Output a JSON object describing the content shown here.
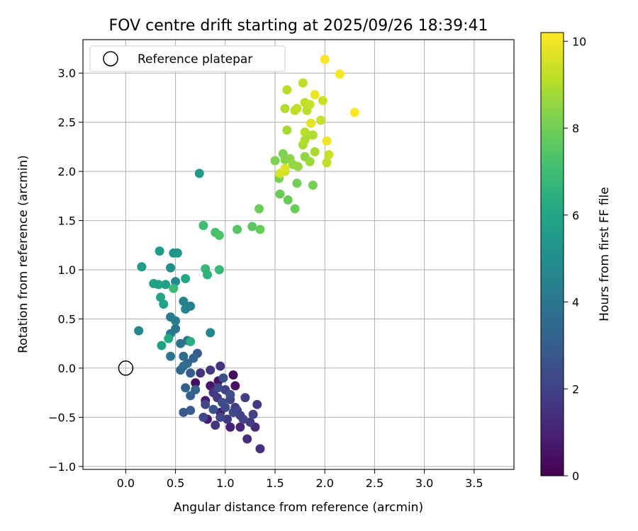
{
  "chart_data": {
    "type": "scatter",
    "title": "FOV centre drift starting at 2025/09/26 18:39:41",
    "xlabel": "Angular distance from reference (arcmin)",
    "ylabel": "Rotation from reference (arcmin)",
    "xlim": [
      -0.43,
      3.9
    ],
    "ylim": [
      -1.03,
      3.34
    ],
    "xticks": [
      "0.0",
      "0.5",
      "1.0",
      "1.5",
      "2.0",
      "2.5",
      "3.0",
      "3.5"
    ],
    "xtick_values": [
      0.0,
      0.5,
      1.0,
      1.5,
      2.0,
      2.5,
      3.0,
      3.5
    ],
    "yticks": [
      "−1.0",
      "−0.5",
      "0.0",
      "0.5",
      "1.0",
      "1.5",
      "2.0",
      "2.5",
      "3.0"
    ],
    "ytick_values": [
      -1.0,
      -0.5,
      0.0,
      0.5,
      1.0,
      1.5,
      2.0,
      2.5,
      3.0
    ],
    "grid": true,
    "legend": {
      "position": "top-left",
      "label": "Reference platepar",
      "marker": "open-circle"
    },
    "reference_point": {
      "x": 0.0,
      "y": 0.0
    },
    "colorbar": {
      "label": "Hours from first FF file",
      "range": [
        0,
        10.2
      ],
      "ticks": [
        "0",
        "2",
        "4",
        "6",
        "8",
        "10"
      ],
      "tick_values": [
        0,
        2,
        4,
        6,
        8,
        10
      ],
      "colormap": "viridis"
    },
    "points": [
      {
        "x": 1.08,
        "y": -0.07,
        "c": 0.3
      },
      {
        "x": 0.93,
        "y": -0.13,
        "c": 0.5
      },
      {
        "x": 0.7,
        "y": -0.15,
        "c": 0.4
      },
      {
        "x": 0.85,
        "y": -0.18,
        "c": 0.6
      },
      {
        "x": 1.1,
        "y": -0.18,
        "c": 0.5
      },
      {
        "x": 0.8,
        "y": -0.33,
        "c": 0.8
      },
      {
        "x": 0.95,
        "y": -0.45,
        "c": 0.9
      },
      {
        "x": 0.82,
        "y": -0.52,
        "c": 0.7
      },
      {
        "x": 1.05,
        "y": -0.6,
        "c": 1.0
      },
      {
        "x": 1.15,
        "y": -0.6,
        "c": 1.1
      },
      {
        "x": 1.3,
        "y": -0.6,
        "c": 1.2
      },
      {
        "x": 1.22,
        "y": -0.72,
        "c": 1.3
      },
      {
        "x": 1.35,
        "y": -0.82,
        "c": 1.4
      },
      {
        "x": 0.75,
        "y": -0.05,
        "c": 1.5
      },
      {
        "x": 0.85,
        "y": -0.02,
        "c": 1.6
      },
      {
        "x": 0.95,
        "y": 0.02,
        "c": 1.5
      },
      {
        "x": 0.88,
        "y": -0.25,
        "c": 1.7
      },
      {
        "x": 0.92,
        "y": -0.3,
        "c": 1.8
      },
      {
        "x": 1.0,
        "y": -0.22,
        "c": 1.9
      },
      {
        "x": 1.05,
        "y": -0.32,
        "c": 2.0
      },
      {
        "x": 1.1,
        "y": -0.4,
        "c": 1.8
      },
      {
        "x": 1.15,
        "y": -0.48,
        "c": 1.9
      },
      {
        "x": 1.02,
        "y": -0.52,
        "c": 1.7
      },
      {
        "x": 0.9,
        "y": -0.58,
        "c": 1.6
      },
      {
        "x": 0.8,
        "y": -0.37,
        "c": 2.1
      },
      {
        "x": 1.2,
        "y": -0.3,
        "c": 1.9
      },
      {
        "x": 1.25,
        "y": -0.55,
        "c": 1.8
      },
      {
        "x": 1.28,
        "y": -0.47,
        "c": 2.0
      },
      {
        "x": 1.32,
        "y": -0.37,
        "c": 1.7
      },
      {
        "x": 0.78,
        "y": -0.5,
        "c": 2.2
      },
      {
        "x": 1.0,
        "y": -0.4,
        "c": 2.2
      },
      {
        "x": 1.08,
        "y": -0.45,
        "c": 2.3
      },
      {
        "x": 0.97,
        "y": -0.35,
        "c": 2.4
      },
      {
        "x": 0.93,
        "y": -0.2,
        "c": 2.3
      },
      {
        "x": 1.12,
        "y": -0.43,
        "c": 2.1
      },
      {
        "x": 1.18,
        "y": -0.52,
        "c": 2.0
      },
      {
        "x": 0.98,
        "y": -0.1,
        "c": 2.5
      },
      {
        "x": 0.88,
        "y": -0.42,
        "c": 2.6
      },
      {
        "x": 1.05,
        "y": -0.27,
        "c": 2.4
      },
      {
        "x": 0.95,
        "y": -0.5,
        "c": 2.2
      },
      {
        "x": 0.58,
        "y": -0.45,
        "c": 2.8
      },
      {
        "x": 0.65,
        "y": -0.43,
        "c": 3.0
      },
      {
        "x": 0.6,
        "y": -0.2,
        "c": 3.2
      },
      {
        "x": 0.65,
        "y": -0.28,
        "c": 3.1
      },
      {
        "x": 0.7,
        "y": -0.22,
        "c": 3.3
      },
      {
        "x": 0.55,
        "y": -0.02,
        "c": 3.4
      },
      {
        "x": 0.62,
        "y": 0.05,
        "c": 3.5
      },
      {
        "x": 0.58,
        "y": 0.12,
        "c": 3.6
      },
      {
        "x": 0.62,
        "y": 0.28,
        "c": 3.7
      },
      {
        "x": 0.65,
        "y": -0.05,
        "c": 3.0
      },
      {
        "x": 0.72,
        "y": 0.15,
        "c": 2.9
      },
      {
        "x": 0.68,
        "y": 0.1,
        "c": 3.3
      },
      {
        "x": 0.55,
        "y": 0.25,
        "c": 3.8
      },
      {
        "x": 0.5,
        "y": 0.4,
        "c": 4.0
      },
      {
        "x": 0.45,
        "y": 0.35,
        "c": 4.1
      },
      {
        "x": 0.45,
        "y": 0.52,
        "c": 4.2
      },
      {
        "x": 0.5,
        "y": 0.48,
        "c": 4.3
      },
      {
        "x": 0.58,
        "y": 0.68,
        "c": 4.5
      },
      {
        "x": 0.6,
        "y": 0.6,
        "c": 4.6
      },
      {
        "x": 0.65,
        "y": 0.63,
        "c": 4.4
      },
      {
        "x": 0.5,
        "y": 0.88,
        "c": 4.8
      },
      {
        "x": 0.45,
        "y": 1.02,
        "c": 5.0
      },
      {
        "x": 0.48,
        "y": 1.17,
        "c": 5.2
      },
      {
        "x": 0.52,
        "y": 1.17,
        "c": 5.3
      },
      {
        "x": 0.34,
        "y": 1.19,
        "c": 5.5
      },
      {
        "x": 0.16,
        "y": 1.03,
        "c": 5.6
      },
      {
        "x": 0.13,
        "y": 0.38,
        "c": 4.7
      },
      {
        "x": 0.85,
        "y": 0.36,
        "c": 4.6
      },
      {
        "x": 0.36,
        "y": 0.23,
        "c": 5.8
      },
      {
        "x": 0.33,
        "y": 0.85,
        "c": 5.9
      },
      {
        "x": 0.35,
        "y": 0.72,
        "c": 6.0
      },
      {
        "x": 0.4,
        "y": 0.85,
        "c": 5.7
      },
      {
        "x": 0.28,
        "y": 0.86,
        "c": 5.8
      },
      {
        "x": 0.6,
        "y": 0.91,
        "c": 6.1
      },
      {
        "x": 0.43,
        "y": 0.3,
        "c": 6.2
      },
      {
        "x": 0.65,
        "y": 0.27,
        "c": 6.4
      },
      {
        "x": 0.74,
        "y": 1.98,
        "c": 5.4
      },
      {
        "x": 0.45,
        "y": 0.12,
        "c": 4.0
      },
      {
        "x": 0.58,
        "y": 0.02,
        "c": 3.6
      },
      {
        "x": 0.38,
        "y": 0.65,
        "c": 5.9
      },
      {
        "x": 0.48,
        "y": 0.81,
        "c": 6.9
      },
      {
        "x": 0.8,
        "y": 1.01,
        "c": 6.8
      },
      {
        "x": 0.82,
        "y": 0.95,
        "c": 6.5
      },
      {
        "x": 0.94,
        "y": 1.0,
        "c": 6.8
      },
      {
        "x": 0.78,
        "y": 1.45,
        "c": 7.0
      },
      {
        "x": 0.9,
        "y": 1.38,
        "c": 7.2
      },
      {
        "x": 0.94,
        "y": 1.35,
        "c": 7.3
      },
      {
        "x": 1.12,
        "y": 1.41,
        "c": 7.5
      },
      {
        "x": 1.27,
        "y": 1.44,
        "c": 7.6
      },
      {
        "x": 1.35,
        "y": 1.41,
        "c": 7.8
      },
      {
        "x": 1.34,
        "y": 1.62,
        "c": 7.9
      },
      {
        "x": 1.55,
        "y": 1.77,
        "c": 7.9
      },
      {
        "x": 1.63,
        "y": 1.71,
        "c": 7.8
      },
      {
        "x": 1.7,
        "y": 1.62,
        "c": 7.9
      },
      {
        "x": 1.72,
        "y": 1.88,
        "c": 8.0
      },
      {
        "x": 1.88,
        "y": 1.86,
        "c": 8.1
      },
      {
        "x": 1.54,
        "y": 1.93,
        "c": 8.1
      },
      {
        "x": 1.58,
        "y": 2.18,
        "c": 8.2
      },
      {
        "x": 1.6,
        "y": 2.12,
        "c": 8.3
      },
      {
        "x": 1.65,
        "y": 2.13,
        "c": 8.4
      },
      {
        "x": 1.5,
        "y": 2.11,
        "c": 8.2
      },
      {
        "x": 1.68,
        "y": 2.07,
        "c": 8.5
      },
      {
        "x": 1.73,
        "y": 2.05,
        "c": 8.6
      },
      {
        "x": 1.8,
        "y": 2.15,
        "c": 8.5
      },
      {
        "x": 1.85,
        "y": 2.1,
        "c": 8.7
      },
      {
        "x": 1.62,
        "y": 2.42,
        "c": 8.8
      },
      {
        "x": 1.78,
        "y": 2.27,
        "c": 8.9
      },
      {
        "x": 1.8,
        "y": 2.32,
        "c": 9.0
      },
      {
        "x": 1.83,
        "y": 2.37,
        "c": 8.8
      },
      {
        "x": 1.88,
        "y": 2.37,
        "c": 9.0
      },
      {
        "x": 1.9,
        "y": 2.2,
        "c": 8.9
      },
      {
        "x": 1.8,
        "y": 2.4,
        "c": 9.1
      },
      {
        "x": 1.6,
        "y": 2.64,
        "c": 9.0
      },
      {
        "x": 1.7,
        "y": 2.62,
        "c": 9.1
      },
      {
        "x": 1.72,
        "y": 2.64,
        "c": 9.2
      },
      {
        "x": 1.8,
        "y": 2.7,
        "c": 9.2
      },
      {
        "x": 1.82,
        "y": 2.62,
        "c": 9.1
      },
      {
        "x": 1.85,
        "y": 2.68,
        "c": 9.3
      },
      {
        "x": 1.62,
        "y": 2.83,
        "c": 9.1
      },
      {
        "x": 1.78,
        "y": 2.9,
        "c": 9.2
      },
      {
        "x": 1.96,
        "y": 2.52,
        "c": 9.3
      },
      {
        "x": 1.98,
        "y": 2.72,
        "c": 9.4
      },
      {
        "x": 2.02,
        "y": 2.09,
        "c": 9.2
      },
      {
        "x": 2.04,
        "y": 2.17,
        "c": 9.3
      },
      {
        "x": 1.6,
        "y": 2.0,
        "c": 9.4
      },
      {
        "x": 1.55,
        "y": 1.98,
        "c": 9.6
      },
      {
        "x": 1.6,
        "y": 2.03,
        "c": 9.7
      },
      {
        "x": 1.86,
        "y": 2.49,
        "c": 9.8
      },
      {
        "x": 1.9,
        "y": 2.78,
        "c": 9.9
      },
      {
        "x": 2.02,
        "y": 2.31,
        "c": 10.0
      },
      {
        "x": 2.0,
        "y": 3.14,
        "c": 10.1
      },
      {
        "x": 2.15,
        "y": 2.99,
        "c": 10.1
      },
      {
        "x": 2.3,
        "y": 2.6,
        "c": 10.2
      }
    ]
  }
}
